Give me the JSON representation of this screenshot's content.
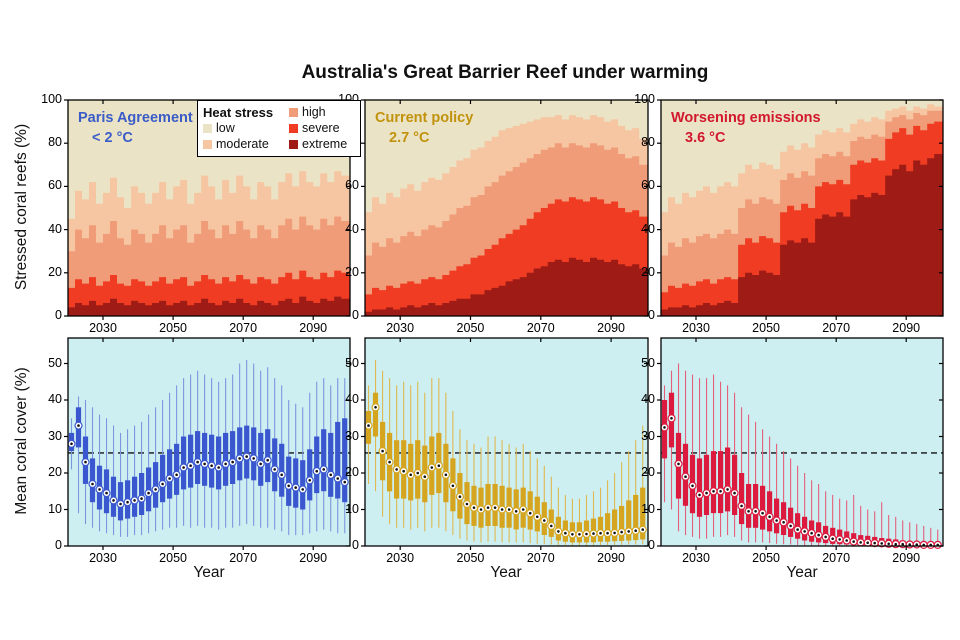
{
  "title": "Australia's Great Barrier Reef under warming",
  "colors": {
    "low": "#ebe3c5",
    "moderate": "#f6c6a2",
    "high": "#f09c78",
    "severe": "#ef3c23",
    "extreme": "#9e1c15",
    "ocean_bg": "#cdeff2",
    "reference_line": "#111111"
  },
  "legend": {
    "title": "Heat stress",
    "items": [
      {
        "label": "low",
        "color": "#ebe3c5"
      },
      {
        "label": "moderate",
        "color": "#f6c6a2"
      },
      {
        "label": "high",
        "color": "#f09c78"
      },
      {
        "label": "severe",
        "color": "#ef3c23"
      },
      {
        "label": "extreme",
        "color": "#9e1c15"
      }
    ]
  },
  "axes": {
    "x_label": "Year",
    "x_ticks": [
      2030,
      2050,
      2070,
      2090
    ],
    "x_domain": [
      2020,
      2100.5
    ],
    "top_y_label": "Stressed coral reefs (%)",
    "top_y_ticks": [
      0,
      20,
      40,
      60,
      80,
      100
    ],
    "top_y_domain": [
      0,
      100
    ],
    "bottom_y_label": "Mean coral cover (%)",
    "bottom_y_ticks": [
      0,
      10,
      20,
      30,
      40,
      50
    ],
    "bottom_y_domain": [
      0,
      57
    ],
    "dashed_reference": 25.5
  },
  "scenarios": [
    {
      "name": "Paris Agreement",
      "temp": "< 2 °C",
      "color": "#3a5cc8"
    },
    {
      "name": "Current policy",
      "temp": "2.7 °C",
      "color": "#c1920b"
    },
    {
      "name": "Worsening emissions",
      "temp": "3.6 °C",
      "color": "#d2182e"
    }
  ],
  "years": [
    2021,
    2023,
    2025,
    2027,
    2029,
    2031,
    2033,
    2035,
    2037,
    2039,
    2041,
    2043,
    2045,
    2047,
    2049,
    2051,
    2053,
    2055,
    2057,
    2059,
    2061,
    2063,
    2065,
    2067,
    2069,
    2071,
    2073,
    2075,
    2077,
    2079,
    2081,
    2083,
    2085,
    2087,
    2089,
    2091,
    2093,
    2095,
    2097,
    2099
  ],
  "chart_data": [
    {
      "type": "stacked-bar",
      "name": "stressed-paris",
      "scenario": "Paris Agreement",
      "ylabel": "Stressed coral reefs (%)",
      "note": "cumulative stacked tops in percent; low fills remainder to 100",
      "cumulative_top_percent": {
        "extreme": [
          4,
          6,
          5,
          7,
          5,
          6,
          8,
          6,
          5,
          7,
          6,
          5,
          6,
          7,
          5,
          6,
          7,
          5,
          6,
          8,
          6,
          5,
          7,
          6,
          8,
          6,
          5,
          7,
          6,
          5,
          7,
          8,
          6,
          9,
          7,
          6,
          8,
          7,
          9,
          8
        ],
        "severe": [
          13,
          17,
          15,
          18,
          14,
          16,
          19,
          15,
          14,
          17,
          16,
          14,
          16,
          18,
          15,
          17,
          18,
          14,
          16,
          19,
          17,
          15,
          18,
          16,
          19,
          17,
          15,
          18,
          17,
          15,
          18,
          20,
          17,
          21,
          18,
          17,
          20,
          18,
          21,
          20
        ],
        "high": [
          30,
          40,
          36,
          42,
          34,
          38,
          44,
          36,
          33,
          40,
          38,
          34,
          38,
          42,
          36,
          40,
          42,
          34,
          38,
          44,
          40,
          36,
          42,
          38,
          44,
          40,
          36,
          42,
          40,
          36,
          42,
          45,
          40,
          46,
          42,
          40,
          45,
          42,
          46,
          44
        ],
        "moderate": [
          45,
          58,
          54,
          62,
          52,
          57,
          64,
          55,
          50,
          60,
          57,
          52,
          57,
          62,
          54,
          60,
          63,
          52,
          57,
          65,
          60,
          54,
          63,
          57,
          65,
          60,
          54,
          62,
          60,
          54,
          62,
          66,
          60,
          67,
          62,
          60,
          66,
          62,
          67,
          65
        ]
      }
    },
    {
      "type": "stacked-bar",
      "name": "stressed-current",
      "scenario": "Current policy",
      "ylabel": "Stressed coral reefs (%)",
      "cumulative_top_percent": {
        "extreme": [
          2,
          3,
          3,
          4,
          3,
          4,
          5,
          4,
          5,
          6,
          5,
          6,
          7,
          8,
          8,
          10,
          10,
          12,
          13,
          14,
          16,
          17,
          18,
          20,
          22,
          23,
          25,
          26,
          25,
          27,
          26,
          25,
          27,
          26,
          25,
          26,
          24,
          23,
          24,
          22
        ],
        "severe": [
          10,
          13,
          12,
          14,
          13,
          15,
          16,
          15,
          17,
          18,
          17,
          19,
          21,
          23,
          24,
          27,
          28,
          31,
          33,
          36,
          38,
          40,
          42,
          45,
          48,
          50,
          52,
          54,
          53,
          55,
          54,
          53,
          55,
          54,
          52,
          53,
          50,
          48,
          49,
          46
        ],
        "high": [
          28,
          34,
          32,
          36,
          34,
          37,
          39,
          37,
          40,
          42,
          41,
          44,
          47,
          50,
          51,
          55,
          56,
          60,
          62,
          65,
          67,
          69,
          71,
          73,
          75,
          77,
          78,
          80,
          78,
          80,
          79,
          78,
          80,
          79,
          77,
          78,
          75,
          73,
          74,
          70
        ],
        "moderate": [
          48,
          55,
          52,
          57,
          55,
          59,
          61,
          58,
          62,
          64,
          63,
          66,
          69,
          72,
          73,
          77,
          78,
          81,
          83,
          86,
          87,
          88,
          89,
          90,
          91,
          92,
          92,
          93,
          91,
          93,
          92,
          91,
          93,
          92,
          90,
          91,
          88,
          86,
          87,
          82
        ]
      }
    },
    {
      "type": "stacked-bar",
      "name": "stressed-worsening",
      "scenario": "Worsening emissions",
      "ylabel": "Stressed coral reefs (%)",
      "cumulative_top_percent": {
        "extreme": [
          3,
          4,
          4,
          5,
          4,
          5,
          6,
          5,
          6,
          7,
          6,
          18,
          20,
          19,
          21,
          20,
          19,
          33,
          35,
          34,
          36,
          34,
          45,
          47,
          46,
          48,
          46,
          54,
          56,
          55,
          57,
          56,
          65,
          68,
          70,
          67,
          72,
          70,
          73,
          75
        ],
        "severe": [
          11,
          14,
          13,
          15,
          14,
          16,
          17,
          15,
          17,
          18,
          17,
          33,
          36,
          34,
          37,
          36,
          34,
          48,
          51,
          49,
          52,
          50,
          60,
          62,
          61,
          63,
          61,
          70,
          72,
          71,
          73,
          72,
          82,
          85,
          87,
          84,
          88,
          86,
          89,
          90
        ],
        "high": [
          28,
          34,
          32,
          36,
          34,
          37,
          38,
          36,
          38,
          40,
          38,
          50,
          54,
          52,
          55,
          54,
          52,
          63,
          66,
          64,
          67,
          65,
          73,
          75,
          74,
          76,
          74,
          81,
          83,
          82,
          84,
          83,
          90,
          92,
          93,
          91,
          94,
          93,
          95,
          95
        ],
        "moderate": [
          48,
          55,
          52,
          57,
          55,
          58,
          60,
          57,
          60,
          62,
          60,
          66,
          70,
          68,
          71,
          70,
          68,
          76,
          79,
          77,
          80,
          78,
          84,
          86,
          85,
          87,
          85,
          89,
          91,
          90,
          92,
          91,
          95,
          96,
          97,
          95,
          97,
          96,
          98,
          97
        ]
      }
    },
    {
      "type": "box",
      "name": "cover-paris",
      "scenario": "Paris Agreement",
      "ylabel": "Mean coral cover (%)",
      "box_color": "#3b57cf",
      "whisker_color": "#7e96de",
      "median": [
        28,
        33,
        23,
        17,
        15.5,
        14.5,
        12.5,
        11.5,
        12,
        12.5,
        13,
        14.5,
        15.5,
        17,
        18.5,
        19.5,
        21.5,
        22,
        23,
        22.5,
        22,
        21.5,
        22.5,
        23,
        24,
        24.5,
        24,
        22.5,
        23.5,
        21,
        19.5,
        16.5,
        16,
        15.5,
        18,
        20.5,
        21,
        19.5,
        18.5,
        17.5
      ],
      "q1": [
        26,
        27,
        17,
        12,
        10,
        9,
        8,
        7,
        7.5,
        8,
        8.5,
        9.5,
        10.5,
        12,
        13,
        14,
        15.5,
        16,
        17,
        16.5,
        16,
        15.5,
        16.5,
        17,
        18,
        18.5,
        18,
        16.5,
        17.5,
        15,
        13.5,
        11,
        10.5,
        10,
        12.5,
        14.5,
        15,
        13.5,
        13,
        12
      ],
      "q3": [
        31,
        38,
        30,
        24,
        22,
        21,
        19,
        17.5,
        18,
        19,
        20,
        21.5,
        23,
        25,
        26.5,
        28,
        30,
        30.5,
        31.5,
        31,
        30.5,
        30,
        31,
        31.5,
        32.5,
        33,
        32.5,
        31,
        32,
        29.5,
        28,
        24.5,
        24,
        23.5,
        26.5,
        30,
        32,
        31,
        34,
        35
      ],
      "whisker_low": [
        21,
        9,
        6,
        5,
        4,
        3.5,
        3,
        2.5,
        2.5,
        3,
        3,
        3.5,
        4,
        4.5,
        5,
        5,
        5.5,
        5,
        5.5,
        5,
        5,
        4.5,
        5,
        5,
        5.5,
        6,
        5.5,
        5,
        5,
        4.5,
        4,
        3,
        3,
        3,
        3.5,
        4,
        4.5,
        4,
        3.5,
        3.5
      ],
      "whisker_high": [
        35,
        41,
        40,
        38,
        36,
        35,
        33,
        31,
        32,
        33,
        34,
        36,
        38,
        40,
        42,
        44,
        46,
        47,
        48,
        47,
        46,
        45,
        46,
        47,
        50,
        51,
        50,
        48,
        49,
        46,
        44,
        40,
        39,
        38,
        42,
        45,
        46,
        44,
        46,
        46
      ]
    },
    {
      "type": "box",
      "name": "cover-current",
      "scenario": "Current policy",
      "ylabel": "Mean coral cover (%)",
      "box_color": "#d6a51f",
      "whisker_color": "#dfb851",
      "median": [
        33,
        38,
        26,
        23,
        21,
        20.5,
        19.5,
        20,
        19,
        21.5,
        22,
        19.5,
        16.5,
        13.5,
        11.5,
        10.5,
        10,
        10.5,
        10.5,
        10,
        10,
        9.5,
        10,
        9,
        8,
        7,
        5.5,
        4,
        3.5,
        3.2,
        3.2,
        3.3,
        3.4,
        3.5,
        3.5,
        3.6,
        3.8,
        4,
        4.2,
        4.5
      ],
      "q1": [
        28,
        30,
        18,
        15,
        13,
        13,
        12.5,
        13,
        12,
        14,
        14.5,
        12,
        9.5,
        7.5,
        6,
        5.5,
        5,
        5.5,
        5.5,
        5,
        5,
        4.5,
        5,
        4.5,
        4,
        3,
        2.5,
        1.5,
        1.2,
        1,
        1,
        1,
        1,
        1.2,
        1.2,
        1.3,
        1.4,
        1.5,
        1.6,
        1.8
      ],
      "q3": [
        37,
        42,
        34,
        31,
        29,
        29,
        28,
        29,
        27.5,
        30,
        31,
        28,
        24,
        20,
        17.5,
        16.5,
        16,
        17,
        17,
        16.5,
        16,
        15.5,
        16,
        15,
        13.5,
        12,
        10,
        8,
        7,
        6.5,
        6.5,
        7,
        7.5,
        8,
        9,
        10,
        11,
        12.5,
        14,
        16
      ],
      "whisker_low": [
        17,
        15,
        8,
        6,
        5,
        5,
        4.5,
        5,
        4,
        5,
        5,
        4,
        3,
        2,
        1.5,
        1.2,
        1,
        1.2,
        1.2,
        1,
        1,
        1,
        1,
        0.8,
        0.6,
        0.5,
        0.4,
        0.3,
        0.3,
        0.2,
        0.2,
        0.2,
        0.2,
        0.3,
        0.3,
        0.3,
        0.3,
        0.4,
        0.4,
        0.5
      ],
      "whisker_high": [
        44,
        51,
        48,
        46,
        44,
        45,
        44,
        45,
        42,
        46,
        46,
        42,
        37,
        32,
        29,
        28,
        27,
        30,
        30,
        29,
        28,
        27,
        28,
        26,
        24,
        22,
        19,
        16,
        14,
        13,
        13,
        14,
        15,
        16,
        18,
        20,
        23,
        26,
        29,
        33
      ]
    },
    {
      "type": "box",
      "name": "cover-worsening",
      "scenario": "Worsening emissions",
      "ylabel": "Mean coral cover (%)",
      "box_color": "#dc1a3e",
      "whisker_color": "#e4607a",
      "median": [
        32.5,
        35,
        22.5,
        19,
        16.5,
        14,
        14.5,
        15,
        15,
        15.5,
        14.5,
        11,
        9.5,
        9.5,
        9,
        8,
        7,
        6.5,
        5.5,
        4.5,
        4,
        3.5,
        3,
        2.5,
        2,
        1.8,
        1.5,
        1.2,
        1,
        0.9,
        0.8,
        0.7,
        0.6,
        0.5,
        0.5,
        0.4,
        0.4,
        0.3,
        0.3,
        0.3
      ],
      "q1": [
        24,
        27,
        13,
        11,
        9,
        8,
        8.5,
        9,
        9,
        9.5,
        8.5,
        6,
        5,
        5,
        4.5,
        4,
        3.5,
        3,
        2.5,
        2,
        1.5,
        1.2,
        1,
        0.8,
        0.6,
        0.5,
        0.4,
        0.3,
        0.3,
        0.2,
        0.2,
        0.2,
        0.1,
        0.1,
        0.1,
        0.1,
        0.1,
        0.1,
        0.1,
        0.1
      ],
      "q3": [
        40,
        42,
        31,
        28,
        25,
        24,
        25,
        26,
        26,
        27,
        25,
        20,
        17,
        17,
        16.5,
        15,
        13,
        12,
        10.5,
        9,
        8,
        7,
        6.5,
        5.5,
        5,
        4.5,
        4,
        3.5,
        3,
        2.8,
        2.5,
        2.2,
        2,
        1.8,
        1.5,
        1.3,
        1.2,
        1,
        0.9,
        0.8
      ],
      "whisker_low": [
        12,
        10,
        4,
        3,
        2.5,
        2,
        2,
        2.5,
        2.5,
        3,
        2.5,
        1.5,
        1,
        1,
        1,
        0.8,
        0.6,
        0.5,
        0.4,
        0.3,
        0.2,
        0.2,
        0.1,
        0.1,
        0.1,
        0.1,
        0,
        0,
        0,
        0,
        0,
        0,
        0,
        0,
        0,
        0,
        0,
        0,
        0,
        0
      ],
      "whisker_high": [
        44,
        48,
        50,
        48,
        47,
        46,
        46,
        47,
        45,
        44,
        42,
        38,
        36,
        34,
        32,
        30,
        28,
        26,
        24,
        22,
        20,
        18,
        17,
        15,
        14,
        13,
        12.5,
        14,
        11,
        10,
        9.5,
        12,
        8.5,
        8,
        7,
        6.5,
        6,
        5.5,
        5,
        4.5
      ]
    }
  ]
}
